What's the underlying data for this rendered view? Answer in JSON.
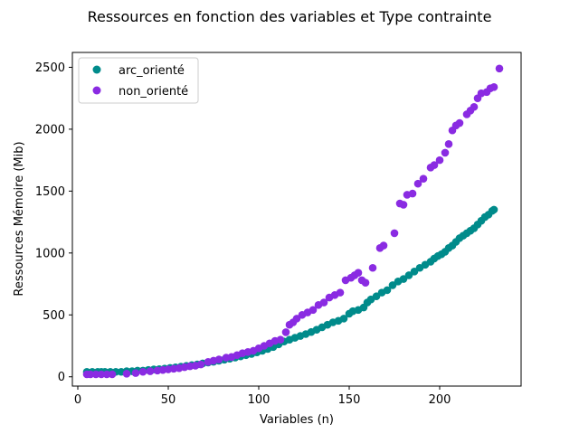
{
  "chart_data": {
    "type": "scatter",
    "title": "Ressources en fonction des variables et Type contrainte",
    "xlabel": "Variables (n)",
    "ylabel": "Ressources Mémoire (Mib)",
    "xlim": [
      -3,
      245
    ],
    "ylim": [
      -75,
      2620
    ],
    "xticks": [
      0,
      50,
      100,
      150,
      200
    ],
    "yticks": [
      0,
      500,
      1000,
      1500,
      2000,
      2500
    ],
    "grid": false,
    "legend": "top-left",
    "series": [
      {
        "name": "arc_orienté",
        "color": "#008B8B",
        "points": [
          [
            5,
            40
          ],
          [
            8,
            40
          ],
          [
            11,
            40
          ],
          [
            13,
            40
          ],
          [
            15,
            40
          ],
          [
            18,
            40
          ],
          [
            21,
            40
          ],
          [
            24,
            40
          ],
          [
            27,
            45
          ],
          [
            30,
            45
          ],
          [
            33,
            50
          ],
          [
            36,
            50
          ],
          [
            39,
            55
          ],
          [
            42,
            60
          ],
          [
            45,
            62
          ],
          [
            48,
            66
          ],
          [
            51,
            72
          ],
          [
            54,
            76
          ],
          [
            57,
            82
          ],
          [
            60,
            88
          ],
          [
            63,
            94
          ],
          [
            66,
            100
          ],
          [
            69,
            108
          ],
          [
            72,
            115
          ],
          [
            75,
            122
          ],
          [
            78,
            130
          ],
          [
            81,
            138
          ],
          [
            84,
            146
          ],
          [
            87,
            155
          ],
          [
            90,
            165
          ],
          [
            93,
            175
          ],
          [
            96,
            185
          ],
          [
            99,
            197
          ],
          [
            102,
            210
          ],
          [
            105,
            225
          ],
          [
            108,
            240
          ],
          [
            111,
            262
          ],
          [
            114,
            285
          ],
          [
            117,
            300
          ],
          [
            120,
            315
          ],
          [
            123,
            330
          ],
          [
            126,
            345
          ],
          [
            129,
            362
          ],
          [
            132,
            380
          ],
          [
            135,
            400
          ],
          [
            138,
            420
          ],
          [
            141,
            440
          ],
          [
            144,
            452
          ],
          [
            147,
            470
          ],
          [
            150,
            510
          ],
          [
            152,
            530
          ],
          [
            155,
            540
          ],
          [
            158,
            560
          ],
          [
            160,
            600
          ],
          [
            162,
            625
          ],
          [
            165,
            650
          ],
          [
            168,
            680
          ],
          [
            171,
            700
          ],
          [
            174,
            740
          ],
          [
            177,
            770
          ],
          [
            180,
            790
          ],
          [
            183,
            820
          ],
          [
            186,
            850
          ],
          [
            189,
            880
          ],
          [
            192,
            905
          ],
          [
            195,
            930
          ],
          [
            197,
            955
          ],
          [
            199,
            975
          ],
          [
            201,
            990
          ],
          [
            203,
            1010
          ],
          [
            205,
            1040
          ],
          [
            207,
            1060
          ],
          [
            209,
            1090
          ],
          [
            211,
            1120
          ],
          [
            213,
            1140
          ],
          [
            215,
            1160
          ],
          [
            217,
            1180
          ],
          [
            219,
            1200
          ],
          [
            221,
            1230
          ],
          [
            223,
            1260
          ],
          [
            225,
            1290
          ],
          [
            227,
            1310
          ],
          [
            229,
            1340
          ],
          [
            230,
            1350
          ]
        ]
      },
      {
        "name": "non_orienté",
        "color": "#8A2BE2",
        "points": [
          [
            5,
            20
          ],
          [
            7,
            20
          ],
          [
            10,
            20
          ],
          [
            13,
            20
          ],
          [
            16,
            20
          ],
          [
            19,
            20
          ],
          [
            27,
            25
          ],
          [
            32,
            30
          ],
          [
            36,
            40
          ],
          [
            40,
            45
          ],
          [
            44,
            50
          ],
          [
            47,
            55
          ],
          [
            50,
            60
          ],
          [
            53,
            65
          ],
          [
            56,
            70
          ],
          [
            59,
            78
          ],
          [
            62,
            85
          ],
          [
            65,
            90
          ],
          [
            68,
            100
          ],
          [
            72,
            120
          ],
          [
            75,
            130
          ],
          [
            78,
            140
          ],
          [
            82,
            155
          ],
          [
            85,
            160
          ],
          [
            88,
            175
          ],
          [
            91,
            190
          ],
          [
            94,
            200
          ],
          [
            97,
            210
          ],
          [
            100,
            230
          ],
          [
            103,
            250
          ],
          [
            106,
            270
          ],
          [
            109,
            290
          ],
          [
            112,
            300
          ],
          [
            115,
            360
          ],
          [
            117,
            420
          ],
          [
            119,
            440
          ],
          [
            121,
            470
          ],
          [
            124,
            500
          ],
          [
            127,
            520
          ],
          [
            130,
            540
          ],
          [
            133,
            580
          ],
          [
            136,
            600
          ],
          [
            139,
            640
          ],
          [
            142,
            660
          ],
          [
            145,
            680
          ],
          [
            148,
            780
          ],
          [
            151,
            800
          ],
          [
            153,
            820
          ],
          [
            155,
            840
          ],
          [
            157,
            780
          ],
          [
            159,
            760
          ],
          [
            163,
            880
          ],
          [
            167,
            1040
          ],
          [
            169,
            1060
          ],
          [
            175,
            1160
          ],
          [
            178,
            1400
          ],
          [
            180,
            1390
          ],
          [
            182,
            1470
          ],
          [
            185,
            1480
          ],
          [
            188,
            1560
          ],
          [
            191,
            1600
          ],
          [
            195,
            1690
          ],
          [
            197,
            1710
          ],
          [
            200,
            1750
          ],
          [
            203,
            1810
          ],
          [
            205,
            1880
          ],
          [
            207,
            1990
          ],
          [
            209,
            2030
          ],
          [
            211,
            2050
          ],
          [
            215,
            2120
          ],
          [
            217,
            2150
          ],
          [
            219,
            2180
          ],
          [
            221,
            2250
          ],
          [
            223,
            2290
          ],
          [
            226,
            2300
          ],
          [
            228,
            2330
          ],
          [
            230,
            2340
          ],
          [
            233,
            2490
          ]
        ]
      }
    ]
  }
}
